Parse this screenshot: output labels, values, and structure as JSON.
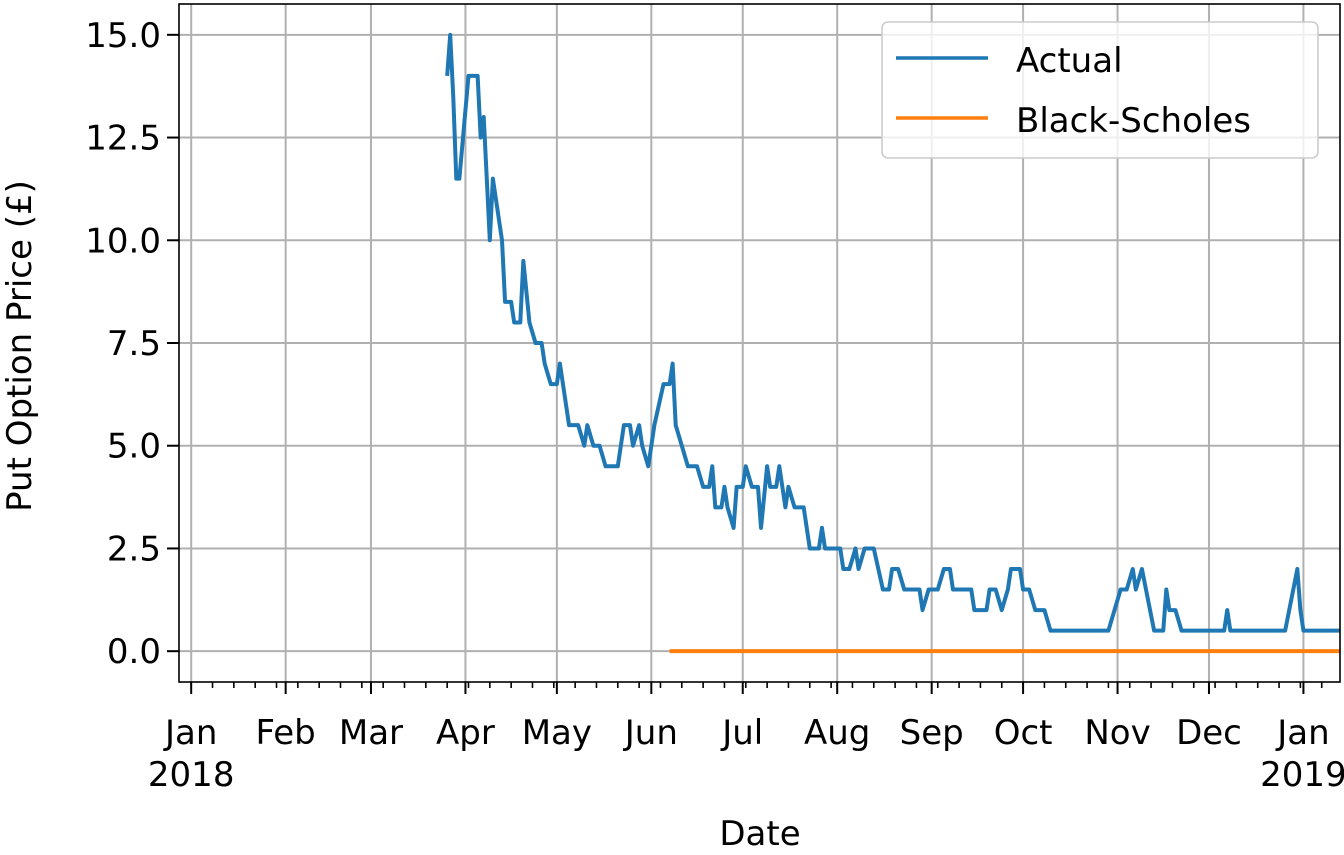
{
  "chart_data": {
    "type": "line",
    "title": "",
    "xlabel": "Date",
    "ylabel": "Put Option Price (£)",
    "xlim": [
      "2017-12-28",
      "2019-01-13"
    ],
    "ylim": [
      -0.75,
      15.75
    ],
    "grid": true,
    "legend_position": "top-right",
    "x_month_ticks": [
      {
        "date": "2018-01-01",
        "label": "Jan",
        "year": "2018"
      },
      {
        "date": "2018-02-01",
        "label": "Feb",
        "year": ""
      },
      {
        "date": "2018-03-01",
        "label": "Mar",
        "year": ""
      },
      {
        "date": "2018-04-01",
        "label": "Apr",
        "year": ""
      },
      {
        "date": "2018-05-01",
        "label": "May",
        "year": ""
      },
      {
        "date": "2018-06-01",
        "label": "Jun",
        "year": ""
      },
      {
        "date": "2018-07-01",
        "label": "Jul",
        "year": ""
      },
      {
        "date": "2018-08-01",
        "label": "Aug",
        "year": ""
      },
      {
        "date": "2018-09-01",
        "label": "Sep",
        "year": ""
      },
      {
        "date": "2018-10-01",
        "label": "Oct",
        "year": ""
      },
      {
        "date": "2018-11-01",
        "label": "Nov",
        "year": ""
      },
      {
        "date": "2018-12-01",
        "label": "Dec",
        "year": ""
      },
      {
        "date": "2019-01-01",
        "label": "Jan",
        "year": "2019"
      }
    ],
    "y_ticks": [
      {
        "value": 0.0,
        "label": "0.0"
      },
      {
        "value": 2.5,
        "label": "2.5"
      },
      {
        "value": 5.0,
        "label": "5.0"
      },
      {
        "value": 7.5,
        "label": "7.5"
      },
      {
        "value": 10.0,
        "label": "10.0"
      },
      {
        "value": 12.5,
        "label": "12.5"
      },
      {
        "value": 15.0,
        "label": "15.0"
      }
    ],
    "series": [
      {
        "name": "Actual",
        "color": "#1f77b4",
        "points": [
          [
            "2018-03-26",
            14.0
          ],
          [
            "2018-03-27",
            15.0
          ],
          [
            "2018-03-28",
            13.5
          ],
          [
            "2018-03-29",
            11.5
          ],
          [
            "2018-03-30",
            11.5
          ],
          [
            "2018-04-02",
            14.0
          ],
          [
            "2018-04-05",
            14.0
          ],
          [
            "2018-04-06",
            12.5
          ],
          [
            "2018-04-07",
            13.0
          ],
          [
            "2018-04-09",
            10.0
          ],
          [
            "2018-04-10",
            11.5
          ],
          [
            "2018-04-12",
            10.5
          ],
          [
            "2018-04-13",
            10.0
          ],
          [
            "2018-04-14",
            8.5
          ],
          [
            "2018-04-16",
            8.5
          ],
          [
            "2018-04-17",
            8.0
          ],
          [
            "2018-04-19",
            8.0
          ],
          [
            "2018-04-20",
            9.5
          ],
          [
            "2018-04-22",
            8.0
          ],
          [
            "2018-04-24",
            7.5
          ],
          [
            "2018-04-26",
            7.5
          ],
          [
            "2018-04-27",
            7.0
          ],
          [
            "2018-04-29",
            6.5
          ],
          [
            "2018-05-01",
            6.5
          ],
          [
            "2018-05-02",
            7.0
          ],
          [
            "2018-05-04",
            6.0
          ],
          [
            "2018-05-05",
            5.5
          ],
          [
            "2018-05-07",
            5.5
          ],
          [
            "2018-05-08",
            5.5
          ],
          [
            "2018-05-10",
            5.0
          ],
          [
            "2018-05-11",
            5.5
          ],
          [
            "2018-05-13",
            5.0
          ],
          [
            "2018-05-15",
            5.0
          ],
          [
            "2018-05-17",
            4.5
          ],
          [
            "2018-05-20",
            4.5
          ],
          [
            "2018-05-21",
            4.5
          ],
          [
            "2018-05-23",
            5.5
          ],
          [
            "2018-05-25",
            5.5
          ],
          [
            "2018-05-26",
            5.0
          ],
          [
            "2018-05-28",
            5.5
          ],
          [
            "2018-05-29",
            5.0
          ],
          [
            "2018-05-31",
            4.5
          ],
          [
            "2018-06-02",
            5.5
          ],
          [
            "2018-06-05",
            6.5
          ],
          [
            "2018-06-06",
            6.5
          ],
          [
            "2018-06-07",
            6.5
          ],
          [
            "2018-06-08",
            7.0
          ],
          [
            "2018-06-09",
            5.5
          ],
          [
            "2018-06-11",
            5.0
          ],
          [
            "2018-06-13",
            4.5
          ],
          [
            "2018-06-15",
            4.5
          ],
          [
            "2018-06-16",
            4.5
          ],
          [
            "2018-06-18",
            4.0
          ],
          [
            "2018-06-20",
            4.0
          ],
          [
            "2018-06-21",
            4.5
          ],
          [
            "2018-06-22",
            3.5
          ],
          [
            "2018-06-24",
            3.5
          ],
          [
            "2018-06-25",
            4.0
          ],
          [
            "2018-06-26",
            3.5
          ],
          [
            "2018-06-28",
            3.0
          ],
          [
            "2018-06-29",
            4.0
          ],
          [
            "2018-07-01",
            4.0
          ],
          [
            "2018-07-02",
            4.5
          ],
          [
            "2018-07-04",
            4.0
          ],
          [
            "2018-07-06",
            4.0
          ],
          [
            "2018-07-07",
            3.0
          ],
          [
            "2018-07-09",
            4.5
          ],
          [
            "2018-07-10",
            4.0
          ],
          [
            "2018-07-12",
            4.0
          ],
          [
            "2018-07-13",
            4.5
          ],
          [
            "2018-07-15",
            3.5
          ],
          [
            "2018-07-16",
            4.0
          ],
          [
            "2018-07-18",
            3.5
          ],
          [
            "2018-07-21",
            3.5
          ],
          [
            "2018-07-23",
            2.5
          ],
          [
            "2018-07-26",
            2.5
          ],
          [
            "2018-07-27",
            3.0
          ],
          [
            "2018-07-28",
            2.5
          ],
          [
            "2018-07-31",
            2.5
          ],
          [
            "2018-08-02",
            2.5
          ],
          [
            "2018-08-03",
            2.0
          ],
          [
            "2018-08-05",
            2.0
          ],
          [
            "2018-08-07",
            2.5
          ],
          [
            "2018-08-08",
            2.0
          ],
          [
            "2018-08-10",
            2.5
          ],
          [
            "2018-08-13",
            2.5
          ],
          [
            "2018-08-16",
            1.5
          ],
          [
            "2018-08-18",
            1.5
          ],
          [
            "2018-08-19",
            2.0
          ],
          [
            "2018-08-21",
            2.0
          ],
          [
            "2018-08-23",
            1.5
          ],
          [
            "2018-08-25",
            1.5
          ],
          [
            "2018-08-28",
            1.5
          ],
          [
            "2018-08-29",
            1.0
          ],
          [
            "2018-08-31",
            1.5
          ],
          [
            "2018-09-03",
            1.5
          ],
          [
            "2018-09-05",
            2.0
          ],
          [
            "2018-09-07",
            2.0
          ],
          [
            "2018-09-08",
            1.5
          ],
          [
            "2018-09-10",
            1.5
          ],
          [
            "2018-09-14",
            1.5
          ],
          [
            "2018-09-15",
            1.0
          ],
          [
            "2018-09-19",
            1.0
          ],
          [
            "2018-09-20",
            1.5
          ],
          [
            "2018-09-22",
            1.5
          ],
          [
            "2018-09-24",
            1.0
          ],
          [
            "2018-09-26",
            1.5
          ],
          [
            "2018-09-27",
            2.0
          ],
          [
            "2018-09-30",
            2.0
          ],
          [
            "2018-10-01",
            1.5
          ],
          [
            "2018-10-03",
            1.5
          ],
          [
            "2018-10-05",
            1.0
          ],
          [
            "2018-10-08",
            1.0
          ],
          [
            "2018-10-10",
            0.5
          ],
          [
            "2018-10-12",
            0.5
          ],
          [
            "2018-10-20",
            0.5
          ],
          [
            "2018-10-29",
            0.5
          ],
          [
            "2018-11-02",
            1.5
          ],
          [
            "2018-11-04",
            1.5
          ],
          [
            "2018-11-06",
            2.0
          ],
          [
            "2018-11-07",
            1.5
          ],
          [
            "2018-11-09",
            2.0
          ],
          [
            "2018-11-13",
            0.5
          ],
          [
            "2018-11-16",
            0.5
          ],
          [
            "2018-11-17",
            1.5
          ],
          [
            "2018-11-18",
            1.0
          ],
          [
            "2018-11-20",
            1.0
          ],
          [
            "2018-11-22",
            0.5
          ],
          [
            "2018-11-30",
            0.5
          ],
          [
            "2018-12-06",
            0.5
          ],
          [
            "2018-12-07",
            1.0
          ],
          [
            "2018-12-08",
            0.5
          ],
          [
            "2018-12-15",
            0.5
          ],
          [
            "2018-12-20",
            0.5
          ],
          [
            "2018-12-26",
            0.5
          ],
          [
            "2018-12-30",
            2.0
          ],
          [
            "2018-12-31",
            1.0
          ],
          [
            "2019-01-01",
            0.5
          ],
          [
            "2019-01-05",
            0.5
          ],
          [
            "2019-01-10",
            0.5
          ],
          [
            "2019-01-13",
            0.5
          ]
        ]
      },
      {
        "name": "Black-Scholes",
        "color": "#ff7f0e",
        "points": [
          [
            "2018-06-07",
            0.0
          ],
          [
            "2019-01-13",
            0.0
          ]
        ]
      }
    ]
  }
}
